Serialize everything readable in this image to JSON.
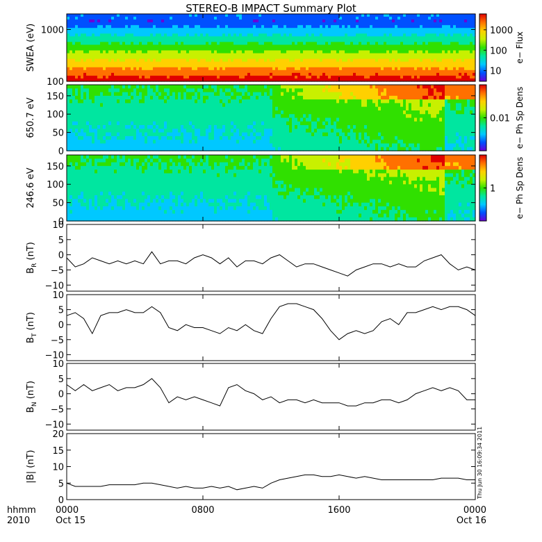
{
  "title": "STEREO-B IMPACT Summary Plot",
  "stamp": "Thu Jun 30 16:09:34 2011",
  "x_axis": {
    "label_line1": "hhmm",
    "label_line2": "2010",
    "ticks": [
      {
        "hour": 0,
        "label": "0000",
        "sublabel": "Oct 15"
      },
      {
        "hour": 8,
        "label": "0800",
        "sublabel": ""
      },
      {
        "hour": 16,
        "label": "1600",
        "sublabel": ""
      },
      {
        "hour": 24,
        "label": "0000",
        "sublabel": "Oct 16"
      }
    ],
    "range_hours": [
      0,
      24
    ]
  },
  "colorbar": {
    "colors": [
      "#6a00d8",
      "#0050ff",
      "#00c8ff",
      "#00e6a0",
      "#30e000",
      "#c8f000",
      "#ffd000",
      "#ff7000",
      "#e00000"
    ]
  },
  "chart_data": [
    {
      "type": "heatmap",
      "ylabel": "SWEA (eV)",
      "y_scale": "log",
      "ylim": [
        100,
        2000
      ],
      "yticks": [
        {
          "value": 100,
          "label": "100"
        },
        {
          "value": 1000,
          "label": "1000"
        }
      ],
      "colorbar_label": "e− Flux",
      "colorbar_scale": "log",
      "colorbar_range": [
        3,
        6000
      ],
      "colorbar_ticks": [
        {
          "value": 10,
          "label": "10"
        },
        {
          "value": 100,
          "label": "100"
        },
        {
          "value": 1000,
          "label": "1000"
        }
      ]
    },
    {
      "type": "heatmap",
      "ylabel": "650.7 eV",
      "ylim": [
        0,
        180
      ],
      "yticks": [
        {
          "value": 0,
          "label": "0"
        },
        {
          "value": 50,
          "label": "50"
        },
        {
          "value": 100,
          "label": "100"
        },
        {
          "value": 150,
          "label": "150"
        }
      ],
      "colorbar_label": "e− Ph Sp Dens",
      "colorbar_scale": "log",
      "colorbar_range": [
        0.001,
        0.1
      ],
      "colorbar_ticks": [
        {
          "value": 0.01,
          "label": "0.01"
        }
      ]
    },
    {
      "type": "heatmap",
      "ylabel": "246.6 eV",
      "ylim": [
        0,
        180
      ],
      "yticks": [
        {
          "value": 0,
          "label": "0"
        },
        {
          "value": 50,
          "label": "50"
        },
        {
          "value": 100,
          "label": "100"
        },
        {
          "value": 150,
          "label": "150"
        }
      ],
      "colorbar_label": "e− Ph Sp Dens",
      "colorbar_scale": "log",
      "colorbar_range": [
        0.1,
        10
      ],
      "colorbar_ticks": [
        {
          "value": 1,
          "label": "1"
        }
      ]
    },
    {
      "type": "line",
      "ylabel_main": "B",
      "ylabel_sub": "R",
      "ylabel_tail": " (nT)",
      "ylim": [
        -12,
        10
      ],
      "yticks": [
        {
          "value": -10,
          "label": "−10"
        },
        {
          "value": -5,
          "label": "−5"
        },
        {
          "value": 0,
          "label": "0"
        },
        {
          "value": 5,
          "label": "5"
        },
        {
          "value": 10,
          "label": "10"
        }
      ],
      "x": [
        0,
        0.5,
        1,
        1.5,
        2,
        2.5,
        3,
        3.5,
        4,
        4.5,
        5,
        5.5,
        6,
        6.5,
        7,
        7.5,
        8,
        8.5,
        9,
        9.5,
        10,
        10.5,
        11,
        11.5,
        12,
        12.5,
        13,
        13.5,
        14,
        14.5,
        15,
        15.5,
        16,
        16.5,
        17,
        17.5,
        18,
        18.5,
        19,
        19.5,
        20,
        20.5,
        21,
        21.5,
        22,
        22.5,
        23,
        23.5,
        24
      ],
      "y": [
        -1,
        -4,
        -3,
        -1,
        -2,
        -3,
        -2,
        -3,
        -2,
        -3,
        1,
        -3,
        -2,
        -2,
        -3,
        -1,
        0,
        -1,
        -3,
        -1,
        -4,
        -2,
        -2,
        -3,
        -1,
        0,
        -2,
        -4,
        -3,
        -3,
        -4,
        -5,
        -6,
        -7,
        -5,
        -4,
        -3,
        -3,
        -4,
        -3,
        -4,
        -4,
        -2,
        -1,
        0,
        -3,
        -5,
        -4,
        -5
      ]
    },
    {
      "type": "line",
      "ylabel_main": "B",
      "ylabel_sub": "T",
      "ylabel_tail": " (nT)",
      "ylim": [
        -12,
        10
      ],
      "yticks": [
        {
          "value": -10,
          "label": "−10"
        },
        {
          "value": -5,
          "label": "−5"
        },
        {
          "value": 0,
          "label": "0"
        },
        {
          "value": 5,
          "label": "5"
        },
        {
          "value": 10,
          "label": "10"
        }
      ],
      "x": [
        0,
        0.5,
        1,
        1.5,
        2,
        2.5,
        3,
        3.5,
        4,
        4.5,
        5,
        5.5,
        6,
        6.5,
        7,
        7.5,
        8,
        8.5,
        9,
        9.5,
        10,
        10.5,
        11,
        11.5,
        12,
        12.5,
        13,
        13.5,
        14,
        14.5,
        15,
        15.5,
        16,
        16.5,
        17,
        17.5,
        18,
        18.5,
        19,
        19.5,
        20,
        20.5,
        21,
        21.5,
        22,
        22.5,
        23,
        23.5,
        24
      ],
      "y": [
        3,
        4,
        2,
        -3,
        3,
        4,
        4,
        5,
        4,
        4,
        6,
        4,
        -1,
        -2,
        0,
        -1,
        -1,
        -2,
        -3,
        -1,
        -2,
        0,
        -2,
        -3,
        2,
        6,
        7,
        7,
        6,
        5,
        2,
        -2,
        -5,
        -3,
        -2,
        -3,
        -2,
        1,
        2,
        0,
        4,
        4,
        5,
        6,
        5,
        6,
        6,
        5,
        3
      ]
    },
    {
      "type": "line",
      "ylabel_main": "B",
      "ylabel_sub": "N",
      "ylabel_tail": " (nT)",
      "ylim": [
        -12,
        10
      ],
      "yticks": [
        {
          "value": -10,
          "label": "−10"
        },
        {
          "value": -5,
          "label": "−5"
        },
        {
          "value": 0,
          "label": "0"
        },
        {
          "value": 5,
          "label": "5"
        },
        {
          "value": 10,
          "label": "10"
        }
      ],
      "x": [
        0,
        0.5,
        1,
        1.5,
        2,
        2.5,
        3,
        3.5,
        4,
        4.5,
        5,
        5.5,
        6,
        6.5,
        7,
        7.5,
        8,
        8.5,
        9,
        9.5,
        10,
        10.5,
        11,
        11.5,
        12,
        12.5,
        13,
        13.5,
        14,
        14.5,
        15,
        15.5,
        16,
        16.5,
        17,
        17.5,
        18,
        18.5,
        19,
        19.5,
        20,
        20.5,
        21,
        21.5,
        22,
        22.5,
        23,
        23.5,
        24
      ],
      "y": [
        3,
        1,
        3,
        1,
        2,
        3,
        1,
        2,
        2,
        3,
        5,
        2,
        -3,
        -1,
        -2,
        -1,
        -2,
        -3,
        -4,
        2,
        3,
        1,
        0,
        -2,
        -1,
        -3,
        -2,
        -2,
        -3,
        -2,
        -3,
        -3,
        -3,
        -4,
        -4,
        -3,
        -3,
        -2,
        -2,
        -3,
        -2,
        0,
        1,
        2,
        1,
        2,
        1,
        -2,
        -2
      ]
    },
    {
      "type": "line",
      "ylabel": "|B| (nT)",
      "ylim": [
        0,
        20
      ],
      "yticks": [
        {
          "value": 0,
          "label": "0"
        },
        {
          "value": 5,
          "label": "5"
        },
        {
          "value": 10,
          "label": "10"
        },
        {
          "value": 15,
          "label": "15"
        },
        {
          "value": 20,
          "label": "20"
        }
      ],
      "x": [
        0,
        0.5,
        1,
        1.5,
        2,
        2.5,
        3,
        3.5,
        4,
        4.5,
        5,
        5.5,
        6,
        6.5,
        7,
        7.5,
        8,
        8.5,
        9,
        9.5,
        10,
        10.5,
        11,
        11.5,
        12,
        12.5,
        13,
        13.5,
        14,
        14.5,
        15,
        15.5,
        16,
        16.5,
        17,
        17.5,
        18,
        18.5,
        19,
        19.5,
        20,
        20.5,
        21,
        21.5,
        22,
        22.5,
        23,
        23.5,
        24
      ],
      "y": [
        5,
        4,
        4,
        4,
        4,
        4.5,
        4.5,
        4.5,
        4.5,
        5,
        5,
        4.5,
        4,
        3.5,
        4,
        3.5,
        3.5,
        4,
        3.5,
        4,
        3,
        3.5,
        4,
        3.5,
        5,
        6,
        6.5,
        7,
        7.5,
        7.5,
        7,
        7,
        7.5,
        7,
        6.5,
        7,
        6.5,
        6,
        6,
        6,
        6,
        6,
        6,
        6,
        6.5,
        6.5,
        6.5,
        6,
        6
      ]
    }
  ]
}
